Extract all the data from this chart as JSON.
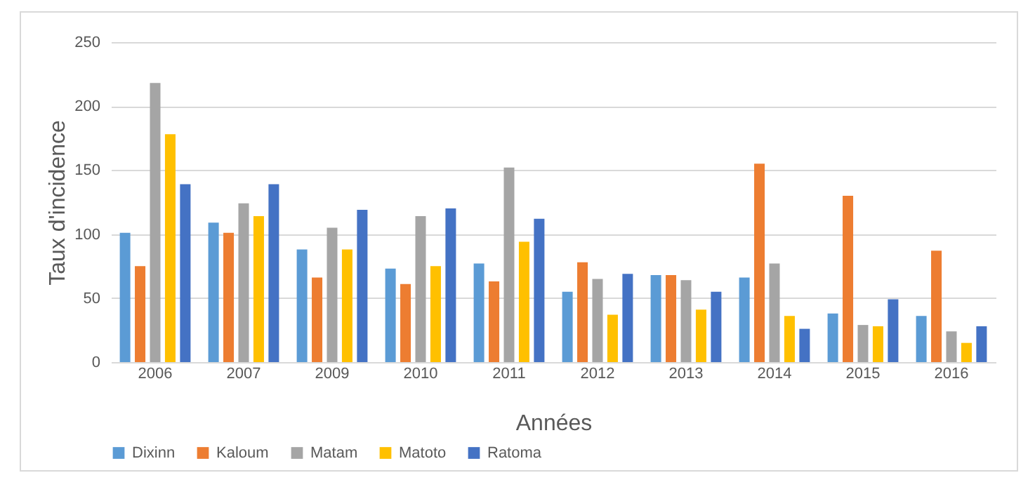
{
  "chart_data": {
    "type": "bar",
    "xlabel": "Années",
    "ylabel": "Taux d'incidence",
    "categories": [
      "2006",
      "2007",
      "2009",
      "2010",
      "2011",
      "2012",
      "2013",
      "2014",
      "2015",
      "2016"
    ],
    "series": [
      {
        "name": "Dixinn",
        "color": "#5b9bd5",
        "values": [
          101,
          109,
          88,
          73,
          77,
          55,
          68,
          66,
          38,
          36
        ]
      },
      {
        "name": "Kaloum",
        "color": "#ed7d31",
        "values": [
          75,
          101,
          66,
          61,
          63,
          78,
          68,
          155,
          130,
          87
        ]
      },
      {
        "name": "Matam",
        "color": "#a5a5a5",
        "values": [
          218,
          124,
          105,
          114,
          152,
          65,
          64,
          77,
          29,
          24
        ]
      },
      {
        "name": "Matoto",
        "color": "#ffc000",
        "values": [
          178,
          114,
          88,
          75,
          94,
          37,
          41,
          36,
          28,
          15
        ]
      },
      {
        "name": "Ratoma",
        "color": "#4472c4",
        "values": [
          139,
          139,
          119,
          120,
          112,
          69,
          55,
          26,
          49,
          28
        ]
      }
    ],
    "ylim": [
      0,
      250
    ],
    "yticks": [
      0,
      50,
      100,
      150,
      200,
      250
    ],
    "grid": "y",
    "legend": "bottom"
  }
}
